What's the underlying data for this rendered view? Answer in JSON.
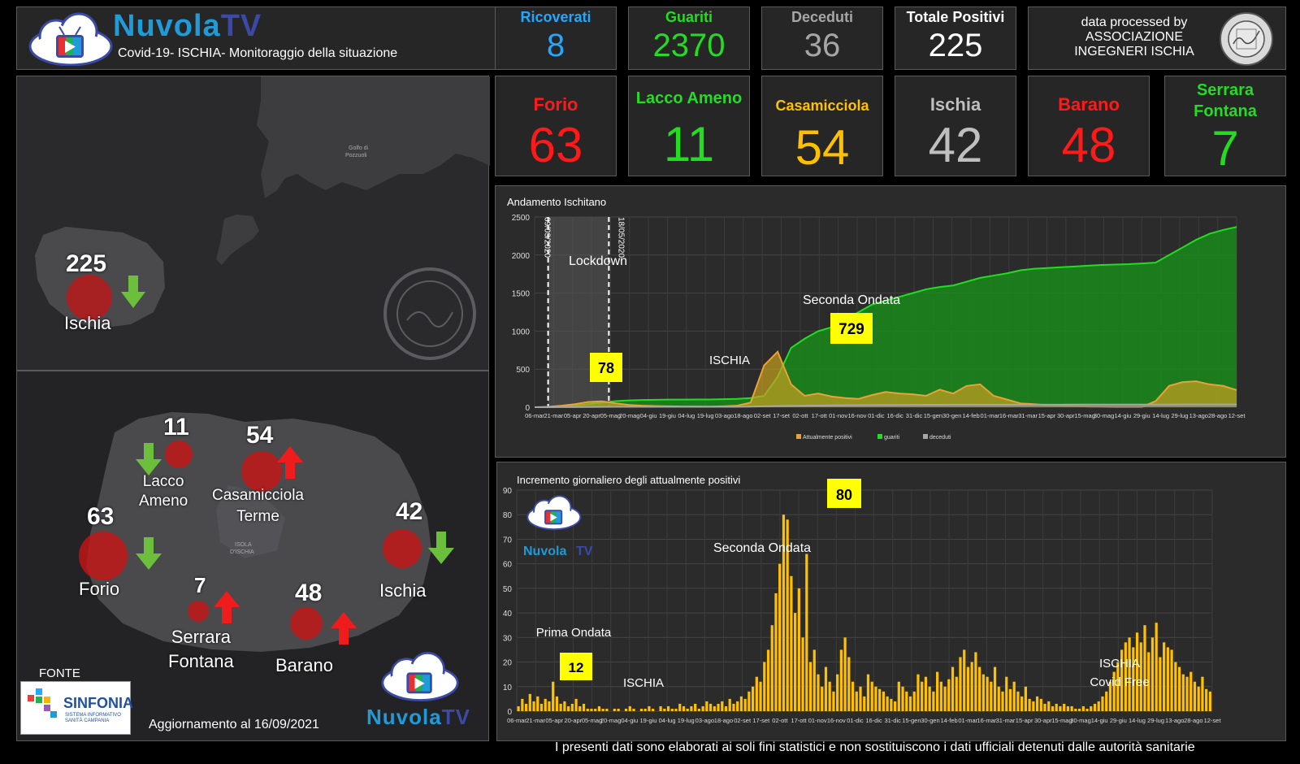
{
  "brand": {
    "name_part1": "Nuvola",
    "name_part2": "TV",
    "subtitle": "Covid-19- ISCHIA- Monitoraggio della situazione"
  },
  "kpis": [
    {
      "label": "Ricoverati",
      "value": "8",
      "color": "#22a8ff"
    },
    {
      "label": "Guariti",
      "value": "2370",
      "color": "#22dd22"
    },
    {
      "label": "Deceduti",
      "value": "36",
      "color": "#a6a6a6"
    },
    {
      "label": "Totale Positivi",
      "value": "225",
      "color": "#ffffff"
    }
  ],
  "assoc": {
    "line1": "data processed by",
    "line2": "ASSOCIAZIONE",
    "line3": "INGEGNERI ISCHIA"
  },
  "towns": [
    {
      "label": "Forio",
      "value": "63",
      "color": "#ff1a1a"
    },
    {
      "label": "Lacco Ameno",
      "value": "11",
      "color": "#22dd22"
    },
    {
      "label": "Casamicciola",
      "value": "54",
      "color": "#ffc000"
    },
    {
      "label": "Ischia",
      "value": "42",
      "color": "#bfbfbf"
    },
    {
      "label": "Barano",
      "value": "48",
      "color": "#ff1a1a"
    },
    {
      "label": "Serrara Fontana",
      "value": "7",
      "color": "#22dd22"
    }
  ],
  "map_top": {
    "total": "225",
    "label": "Ischia",
    "gulf_label_1": "Golfo di",
    "gulf_label_2": "Pozzuoli"
  },
  "map_bottom": {
    "forio_num": "63",
    "forio_lbl": "Forio",
    "lacco_num": "11",
    "lacco_lbl_1": "Lacco",
    "lacco_lbl_2": "Ameno",
    "casa_num": "54",
    "casa_lbl_1": "Casamicciola",
    "casa_lbl_2": "Terme",
    "ischia_num": "42",
    "ischia_lbl": "Ischia",
    "serrara_num": "7",
    "serrara_lbl_1": "Serrara",
    "serrara_lbl_2": "Fontana",
    "barano_num": "48",
    "barano_lbl": "Barano",
    "island_lbl_1": "ISOLA",
    "island_lbl_2": "D'ISCHIA",
    "fonte_label": "FONTE",
    "sinfonia_name": "SINFONIA",
    "sinfonia_sub_1": "SISTEMA INFORMATIVO",
    "sinfonia_sub_2": "SANITÀ CAMPANIA",
    "update_text": "Aggiornamento  al 16/09/2021"
  },
  "footer_brand": {
    "part1": "Nuvola",
    "part2": "TV"
  },
  "footer_text": "I presenti dati sono elaborati ai soli fini statistici e non sostituiscono i dati ufficiali detenuti dalle autorità sanitarie",
  "chart_data": [
    {
      "type": "area",
      "title": "Andamento Ischitano",
      "ylim": [
        0,
        2500
      ],
      "yticks": [
        0,
        500,
        1000,
        1500,
        2000,
        2500
      ],
      "grid": true,
      "legend_position": "bottom",
      "x_tick_labels": [
        "06-mar",
        "21-mar",
        "05-apr",
        "20-apr",
        "05-mag",
        "20-mag",
        "04-giu",
        "19-giu",
        "04-lug",
        "19-lug",
        "03-ago",
        "18-ago",
        "02-set",
        "17-set",
        "02-ott",
        "17-ott",
        "01-nov",
        "16-nov",
        "01-dic",
        "16-dic",
        "31-dic",
        "15-gen",
        "30-gen",
        "14-feb",
        "01-mar",
        "16-mar",
        "31-mar",
        "15-apr",
        "30-apr",
        "15-mag",
        "30-mag",
        "14-giu",
        "29-giu",
        "14-lug",
        "29-lug",
        "13-ago",
        "28-ago",
        "12-set"
      ],
      "series": [
        {
          "name": "Attualmente positivi",
          "color": "#e8a23a",
          "values": [
            0,
            5,
            20,
            40,
            70,
            78,
            50,
            30,
            20,
            15,
            12,
            10,
            10,
            8,
            12,
            20,
            60,
            550,
            729,
            300,
            150,
            180,
            140,
            120,
            110,
            160,
            200,
            180,
            170,
            150,
            230,
            180,
            280,
            300,
            150,
            100,
            50,
            40,
            25,
            20,
            15,
            10,
            8,
            6,
            6,
            5,
            80,
            280,
            330,
            340,
            300,
            280,
            225
          ]
        },
        {
          "name": "guariti",
          "color": "#22dd22",
          "values": [
            0,
            0,
            10,
            20,
            40,
            60,
            80,
            90,
            95,
            98,
            100,
            100,
            102,
            102,
            105,
            110,
            120,
            150,
            400,
            780,
            900,
            1000,
            1050,
            1150,
            1250,
            1350,
            1400,
            1450,
            1500,
            1550,
            1580,
            1600,
            1650,
            1700,
            1730,
            1760,
            1800,
            1820,
            1830,
            1840,
            1850,
            1860,
            1870,
            1875,
            1880,
            1890,
            1900,
            2000,
            2100,
            2200,
            2280,
            2330,
            2370
          ]
        },
        {
          "name": "deceduti",
          "color": "#a6a6a6",
          "values": [
            0,
            0,
            1,
            2,
            3,
            4,
            5,
            5,
            5,
            5,
            5,
            5,
            5,
            5,
            5,
            6,
            8,
            12,
            16,
            18,
            20,
            22,
            24,
            26,
            27,
            28,
            29,
            30,
            31,
            32,
            32,
            33,
            33,
            33,
            34,
            34,
            34,
            34,
            34,
            34,
            35,
            35,
            35,
            35,
            35,
            35,
            35,
            35,
            36,
            36,
            36,
            36,
            36
          ]
        }
      ],
      "annotations": [
        {
          "text": "78",
          "type": "badge"
        },
        {
          "text": "729",
          "type": "badge"
        },
        {
          "text": "Lockdown"
        },
        {
          "text": "Seconda Ondata"
        },
        {
          "text": "ISCHIA"
        },
        {
          "text": "09/03/2020"
        },
        {
          "text": "18/05/2020"
        }
      ]
    },
    {
      "type": "bar",
      "title": "Incremento giornaliero degli attualmente positivi",
      "ylim": [
        0,
        90
      ],
      "yticks": [
        0,
        10,
        20,
        30,
        40,
        50,
        60,
        70,
        80,
        90
      ],
      "grid": true,
      "x_tick_labels": [
        "06-mar",
        "21-mar",
        "05-apr",
        "20-apr",
        "05-mag",
        "20-mag",
        "04-giu",
        "19-giu",
        "04-lug",
        "19-lug",
        "03-ago",
        "18-ago",
        "02-set",
        "17-set",
        "02-ott",
        "17-ott",
        "01-nov",
        "16-nov",
        "01-dic",
        "16-dic",
        "31-dic",
        "15-gen",
        "30-gen",
        "14-feb",
        "01-mar",
        "16-mar",
        "31-mar",
        "15-apr",
        "30-apr",
        "15-mag",
        "30-mag",
        "14-giu",
        "29-giu",
        "14-lug",
        "29-lug",
        "13-ago",
        "28-ago",
        "12-set"
      ],
      "series": [
        {
          "name": "Incremento giornaliero",
          "color": "#ffc000",
          "values": [
            2,
            5,
            3,
            7,
            4,
            6,
            3,
            5,
            4,
            12,
            6,
            3,
            4,
            2,
            3,
            5,
            2,
            3,
            1,
            1,
            1,
            2,
            1,
            1,
            0,
            1,
            1,
            0,
            1,
            2,
            1,
            0,
            1,
            1,
            2,
            1,
            0,
            2,
            1,
            2,
            1,
            1,
            3,
            2,
            1,
            2,
            3,
            1,
            2,
            4,
            3,
            2,
            3,
            4,
            2,
            5,
            3,
            4,
            6,
            5,
            8,
            10,
            14,
            12,
            20,
            25,
            35,
            48,
            60,
            80,
            78,
            55,
            40,
            50,
            30,
            64,
            20,
            25,
            15,
            10,
            18,
            12,
            8,
            15,
            25,
            30,
            22,
            12,
            8,
            10,
            6,
            15,
            12,
            10,
            9,
            8,
            6,
            5,
            4,
            12,
            10,
            8,
            6,
            8,
            15,
            12,
            14,
            10,
            8,
            16,
            12,
            10,
            13,
            18,
            14,
            22,
            25,
            18,
            20,
            24,
            18,
            15,
            14,
            12,
            18,
            10,
            8,
            14,
            9,
            12,
            8,
            6,
            10,
            5,
            4,
            6,
            5,
            3,
            4,
            2,
            3,
            2,
            3,
            2,
            2,
            1,
            1,
            2,
            1,
            2,
            3,
            4,
            6,
            8,
            12,
            16,
            20,
            25,
            28,
            30,
            26,
            32,
            28,
            35,
            24,
            30,
            36,
            22,
            28,
            26,
            25,
            20,
            18,
            15,
            14,
            16,
            12,
            10,
            14,
            9,
            8
          ]
        }
      ],
      "annotations": [
        {
          "text": "80",
          "type": "badge"
        },
        {
          "text": "12",
          "type": "badge"
        },
        {
          "text": "Seconda Ondata"
        },
        {
          "text": "Prima Ondata"
        },
        {
          "text": "ISCHIA"
        },
        {
          "text": "ISCHIA"
        },
        {
          "text": "Covid Free"
        }
      ]
    }
  ]
}
